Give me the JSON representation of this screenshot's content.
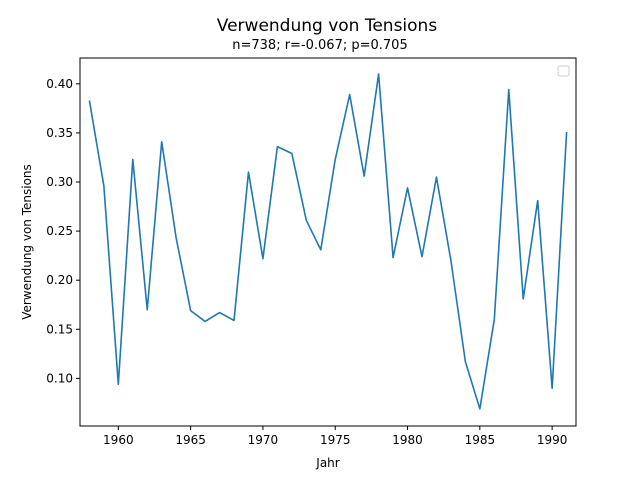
{
  "chart_data": {
    "type": "line",
    "title": "Verwendung von Tensions",
    "subtitle": "n=738; r=-0.067; p=0.705",
    "xlabel": "Jahr",
    "ylabel": "Verwendung von Tensions",
    "xlim": [
      1957.35,
      1991.65
    ],
    "ylim": [
      0.0515,
      0.4263
    ],
    "xticks": [
      1960,
      1965,
      1970,
      1975,
      1980,
      1985,
      1990
    ],
    "yticks": [
      0.1,
      0.15,
      0.2,
      0.25,
      0.3,
      0.35,
      0.4
    ],
    "ytick_labels": [
      "0.10",
      "0.15",
      "0.20",
      "0.25",
      "0.30",
      "0.35",
      "0.40"
    ],
    "legend": "top-right",
    "color": "#1f77b4",
    "series": [
      {
        "x": [
          1958,
          1959,
          1960,
          1961,
          1962,
          1963,
          1964,
          1965,
          1966,
          1967,
          1968,
          1969,
          1970,
          1971,
          1972,
          1973,
          1974,
          1975,
          1976,
          1977,
          1978,
          1979,
          1980,
          1981,
          1982,
          1983,
          1984,
          1985,
          1986,
          1987,
          1988,
          1989,
          1990,
          1991
        ],
        "values": [
          0.383,
          0.296,
          0.094,
          0.323,
          0.17,
          0.341,
          0.243,
          0.169,
          0.158,
          0.167,
          0.159,
          0.31,
          0.222,
          0.336,
          0.329,
          0.261,
          0.231,
          0.323,
          0.389,
          0.306,
          0.41,
          0.223,
          0.294,
          0.224,
          0.305,
          0.22,
          0.117,
          0.069,
          0.16,
          0.394,
          0.181,
          0.281,
          0.09,
          0.351
        ]
      }
    ]
  }
}
